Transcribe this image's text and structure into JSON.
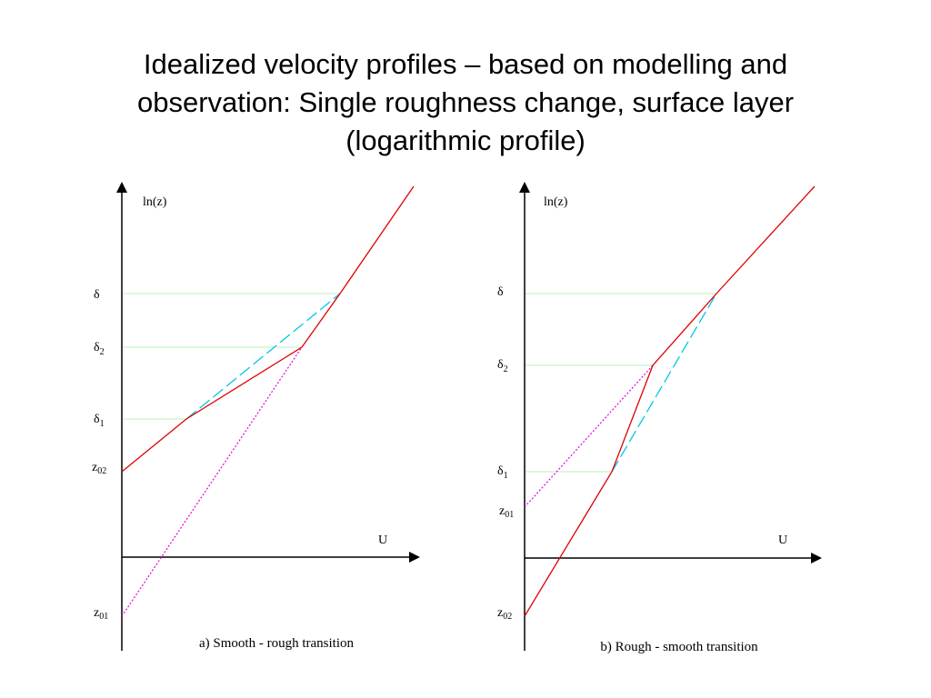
{
  "title": {
    "line1": "Idealized velocity profiles – based on modelling and",
    "line2": "observation: Single roughness change, surface layer",
    "line3": "(logarithmic profile)"
  },
  "colors": {
    "axis": "#000000",
    "profile": "#e00000",
    "dashed": "#00c8e6",
    "dotted": "#e000e0",
    "guide": "#b8f0b8"
  },
  "panels": {
    "a": {
      "y_axis_label": "ln(z)",
      "x_axis_label": "U",
      "caption": "a) Smooth - rough transition",
      "levels": {
        "delta": {
          "base": "δ",
          "sub": ""
        },
        "delta2": {
          "base": "δ",
          "sub": "2"
        },
        "delta1": {
          "base": "δ",
          "sub": "1"
        },
        "z02": {
          "base": "z",
          "sub": "02"
        },
        "z01": {
          "base": "z",
          "sub": "01"
        }
      }
    },
    "b": {
      "y_axis_label": "ln(z)",
      "x_axis_label": "U",
      "caption": "b) Rough - smooth transition",
      "levels": {
        "delta": {
          "base": "δ",
          "sub": ""
        },
        "delta2": {
          "base": "δ",
          "sub": "2"
        },
        "delta1": {
          "base": "δ",
          "sub": "1"
        },
        "z01": {
          "base": "z",
          "sub": "01"
        },
        "z02": {
          "base": "z",
          "sub": "02"
        }
      }
    }
  }
}
